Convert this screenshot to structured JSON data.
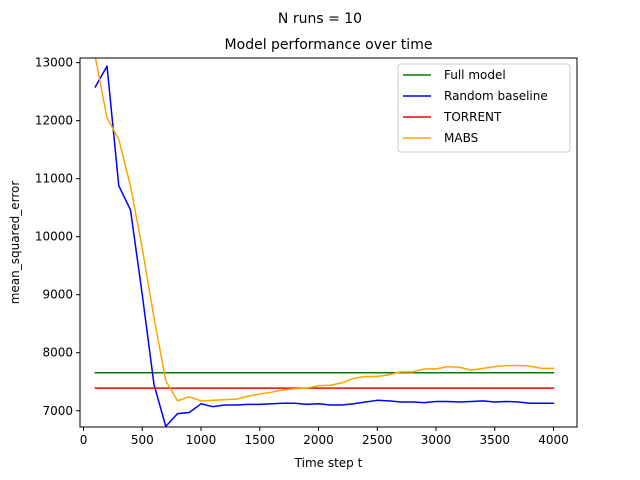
{
  "figure": {
    "suptitle": "N runs = 10"
  },
  "chart_data": {
    "type": "line",
    "title": "Model performance over time",
    "xlabel": "Time step t",
    "ylabel": "mean_squared_error",
    "xlim": [
      -30,
      4200
    ],
    "ylim": [
      6720,
      13080
    ],
    "xticks": [
      0,
      500,
      1000,
      1500,
      2000,
      2500,
      3000,
      3500,
      4000
    ],
    "yticks": [
      7000,
      8000,
      9000,
      10000,
      11000,
      12000,
      13000
    ],
    "grid": false,
    "legend_position": "top-right",
    "series": [
      {
        "name": "Full model",
        "color": "#008000",
        "x": [
          100,
          4000
        ],
        "y": [
          7655,
          7655
        ]
      },
      {
        "name": "Random baseline",
        "color": "#0000ff",
        "x": [
          100,
          200,
          300,
          400,
          500,
          600,
          700,
          800,
          900,
          1000,
          1100,
          1200,
          1300,
          1400,
          1500,
          1600,
          1700,
          1800,
          1900,
          2000,
          2100,
          2200,
          2300,
          2400,
          2500,
          2600,
          2700,
          2800,
          2900,
          3000,
          3100,
          3200,
          3300,
          3400,
          3500,
          3600,
          3700,
          3800,
          3900,
          4000
        ],
        "y": [
          12580,
          12940,
          10880,
          10460,
          9000,
          7450,
          6730,
          6950,
          6970,
          7120,
          7070,
          7100,
          7100,
          7110,
          7110,
          7120,
          7130,
          7130,
          7110,
          7120,
          7100,
          7100,
          7120,
          7150,
          7180,
          7170,
          7150,
          7150,
          7140,
          7160,
          7160,
          7150,
          7160,
          7170,
          7150,
          7160,
          7150,
          7130,
          7130,
          7130
        ]
      },
      {
        "name": "TORRENT",
        "color": "#ff0000",
        "x": [
          100,
          4000
        ],
        "y": [
          7390,
          7390
        ]
      },
      {
        "name": "MABS",
        "color": "#ffa500",
        "x": [
          100,
          200,
          300,
          400,
          500,
          600,
          700,
          800,
          900,
          1000,
          1100,
          1200,
          1300,
          1400,
          1500,
          1600,
          1700,
          1800,
          1900,
          2000,
          2100,
          2200,
          2300,
          2400,
          2500,
          2600,
          2700,
          2800,
          2900,
          3000,
          3100,
          3200,
          3300,
          3400,
          3500,
          3600,
          3700,
          3800,
          3900,
          4000
        ],
        "y": [
          13100,
          12050,
          11680,
          10870,
          9800,
          8600,
          7520,
          7170,
          7240,
          7170,
          7180,
          7190,
          7200,
          7250,
          7290,
          7320,
          7360,
          7380,
          7390,
          7430,
          7440,
          7480,
          7560,
          7590,
          7590,
          7620,
          7670,
          7670,
          7720,
          7720,
          7760,
          7750,
          7700,
          7730,
          7760,
          7780,
          7780,
          7770,
          7730,
          7730
        ]
      }
    ]
  }
}
